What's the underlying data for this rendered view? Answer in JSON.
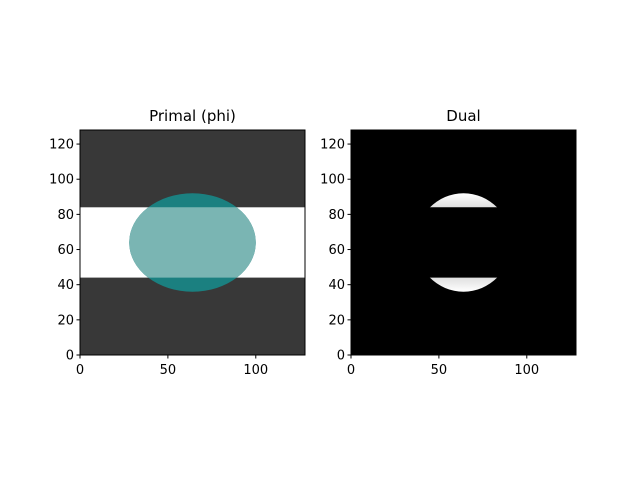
{
  "chart_data": [
    {
      "type": "image",
      "title": "Primal (phi)",
      "xlim": [
        0,
        128
      ],
      "ylim": [
        0,
        128
      ],
      "xticks": [
        0,
        50,
        100
      ],
      "yticks": [
        0,
        20,
        40,
        60,
        80,
        100,
        120
      ]
    },
    {
      "type": "image",
      "title": "Dual",
      "xlim": [
        0,
        128
      ],
      "ylim": [
        0,
        128
      ],
      "xticks": [
        0,
        50,
        100
      ],
      "yticks": [
        0,
        20,
        40,
        60,
        80,
        100,
        120
      ]
    }
  ]
}
